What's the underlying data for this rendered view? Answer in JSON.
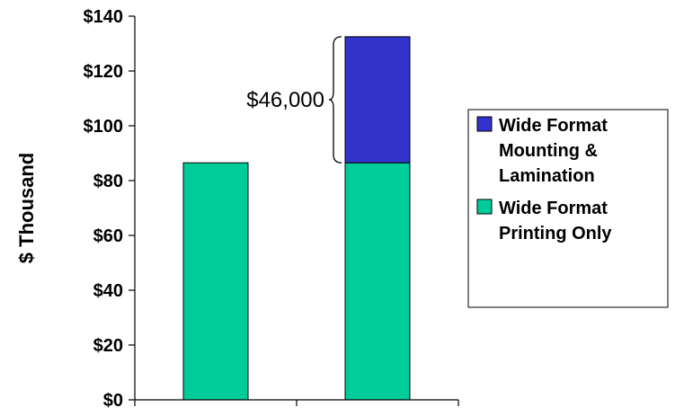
{
  "chart_data": {
    "type": "bar",
    "stacked": true,
    "categories": [
      "",
      ""
    ],
    "series": [
      {
        "name": "Wide Format Printing Only",
        "color": "#00cc99",
        "values": [
          86.5,
          86.5
        ]
      },
      {
        "name": "Wide Format Mounting & Lamination",
        "color": "#3333cc",
        "values": [
          0,
          46
        ]
      }
    ],
    "ylabel": "$ Thousand",
    "ylim": [
      0,
      140
    ],
    "yticks": [
      0,
      20,
      40,
      60,
      80,
      100,
      120,
      140
    ],
    "ytick_labels": [
      "$0",
      "$20",
      "$40",
      "$60",
      "$80",
      "$100",
      "$120",
      "$140"
    ],
    "grid": false,
    "legend_position": "right",
    "legend": [
      {
        "series": 1,
        "lines": [
          "Wide Format",
          "Mounting &",
          "Lamination"
        ]
      },
      {
        "series": 0,
        "lines": [
          "Wide Format",
          "Printing Only"
        ]
      }
    ],
    "annotations": [
      {
        "text": "$46,000",
        "category_index": 1,
        "y_from": 86.5,
        "y_to": 132.5,
        "marker": "brace"
      }
    ]
  }
}
